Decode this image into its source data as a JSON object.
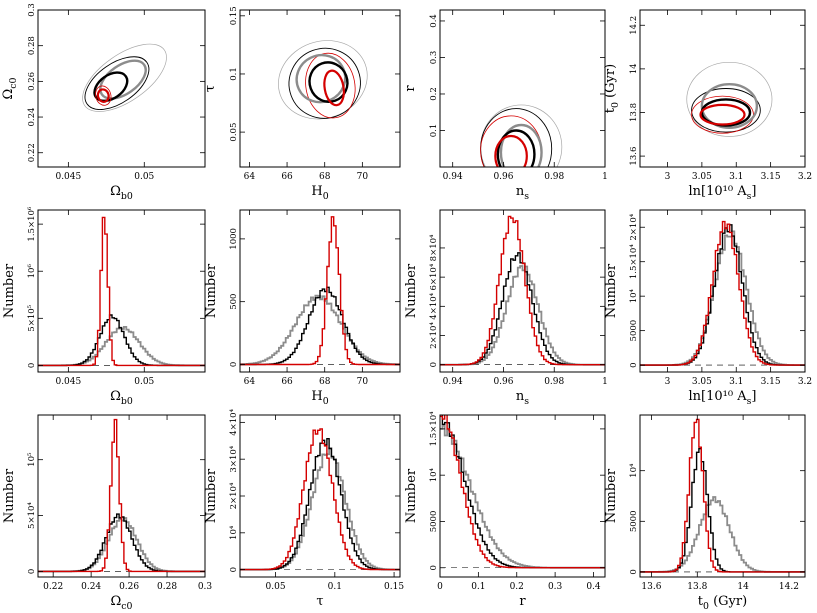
{
  "figure": {
    "colors": {
      "black": "#000000",
      "gray": "#8c8c8c",
      "lightgray": "#a8a8a8",
      "red": "#d40000"
    }
  },
  "chart_data": [
    {
      "id": "c-ob-oc",
      "type": "contour",
      "xlabel": "Ωb0",
      "ylabel": "Ωc0",
      "xlim": [
        0.043,
        0.054
      ],
      "ylim": [
        0.212,
        0.3
      ],
      "xticks": [
        [
          0.045,
          "0.045"
        ],
        [
          0.05,
          "0.05"
        ]
      ],
      "yticks": [
        [
          0.22,
          "0.22"
        ],
        [
          0.24,
          "0.24"
        ],
        [
          0.26,
          "0.26"
        ],
        [
          0.28,
          "0.28"
        ],
        [
          0.3,
          "0.3"
        ]
      ],
      "ellipses": [
        {
          "color": "lightgray",
          "cx": 0.0487,
          "cy": 0.262,
          "rx": 0.0032,
          "ry": 0.013,
          "rot": -35,
          "w": 0.7
        },
        {
          "color": "black",
          "cx": 0.0482,
          "cy": 0.259,
          "rx": 0.0024,
          "ry": 0.011,
          "rot": -35,
          "w": 0.9
        },
        {
          "color": "gray",
          "cx": 0.0486,
          "cy": 0.261,
          "rx": 0.0017,
          "ry": 0.008,
          "rot": -35,
          "w": 2.4
        },
        {
          "color": "black",
          "cx": 0.0478,
          "cy": 0.257,
          "rx": 0.0012,
          "ry": 0.0065,
          "rot": -35,
          "w": 2.4
        },
        {
          "color": "red",
          "cx": 0.0473,
          "cy": 0.252,
          "rx": 0.0005,
          "ry": 0.0055,
          "rot": -15,
          "w": 0.8
        },
        {
          "color": "red",
          "cx": 0.0473,
          "cy": 0.252,
          "rx": 0.00035,
          "ry": 0.0035,
          "rot": -15,
          "w": 2.2
        }
      ]
    },
    {
      "id": "c-h0-tau",
      "type": "contour",
      "xlabel": "H0",
      "ylabel": "τ",
      "xlim": [
        63.5,
        72
      ],
      "ylim": [
        0.02,
        0.155
      ],
      "xticks": [
        [
          64,
          "64"
        ],
        [
          66,
          "66"
        ],
        [
          68,
          "68"
        ],
        [
          70,
          "70"
        ]
      ],
      "yticks": [
        [
          0.05,
          "0.05"
        ],
        [
          0.1,
          "0.1"
        ],
        [
          0.15,
          "0.15"
        ]
      ],
      "ellipses": [
        {
          "color": "lightgray",
          "cx": 67.9,
          "cy": 0.095,
          "rx": 2.4,
          "ry": 0.033,
          "rot": -20,
          "w": 0.7
        },
        {
          "color": "black",
          "cx": 68.0,
          "cy": 0.092,
          "rx": 1.9,
          "ry": 0.03,
          "rot": -20,
          "w": 0.9
        },
        {
          "color": "red",
          "cx": 68.3,
          "cy": 0.09,
          "rx": 1.3,
          "ry": 0.028,
          "rot": -10,
          "w": 0.8
        },
        {
          "color": "gray",
          "cx": 67.8,
          "cy": 0.096,
          "rx": 1.3,
          "ry": 0.02,
          "rot": -25,
          "w": 2.4
        },
        {
          "color": "black",
          "cx": 68.2,
          "cy": 0.093,
          "rx": 1.0,
          "ry": 0.017,
          "rot": -20,
          "w": 2.4
        },
        {
          "color": "red",
          "cx": 68.5,
          "cy": 0.088,
          "rx": 0.5,
          "ry": 0.015,
          "rot": -10,
          "w": 2.2
        }
      ]
    },
    {
      "id": "c-ns-r",
      "type": "contour",
      "xlabel": "ns",
      "ylabel": "r",
      "xlim": [
        0.935,
        1.0
      ],
      "ylim": [
        0.0,
        0.43
      ],
      "xticks": [
        [
          0.94,
          "0.94"
        ],
        [
          0.96,
          "0.96"
        ],
        [
          0.98,
          "0.98"
        ],
        [
          1.0,
          "1"
        ]
      ],
      "yticks": [
        [
          0.1,
          "0.1"
        ],
        [
          0.2,
          "0.2"
        ],
        [
          0.3,
          "0.3"
        ],
        [
          0.4,
          "0.4"
        ]
      ],
      "ellipses": [
        {
          "color": "lightgray",
          "cx": 0.967,
          "cy": 0.055,
          "rx": 0.016,
          "ry": 0.115,
          "rot": 0,
          "w": 0.7
        },
        {
          "color": "black",
          "cx": 0.965,
          "cy": 0.05,
          "rx": 0.014,
          "ry": 0.11,
          "rot": 0,
          "w": 0.9
        },
        {
          "color": "red",
          "cx": 0.963,
          "cy": 0.045,
          "rx": 0.012,
          "ry": 0.095,
          "rot": 0,
          "w": 0.8
        },
        {
          "color": "gray",
          "cx": 0.967,
          "cy": 0.04,
          "rx": 0.008,
          "ry": 0.075,
          "rot": 0,
          "w": 2.4
        },
        {
          "color": "black",
          "cx": 0.965,
          "cy": 0.035,
          "rx": 0.0072,
          "ry": 0.065,
          "rot": 0,
          "w": 2.4
        },
        {
          "color": "red",
          "cx": 0.963,
          "cy": 0.03,
          "rx": 0.0062,
          "ry": 0.055,
          "rot": 0,
          "w": 2.2
        }
      ]
    },
    {
      "id": "c-as-t0",
      "type": "contour",
      "xlabel": "ln[10¹⁰ As]",
      "ylabel": "t0 (Gyr)",
      "xlim": [
        2.96,
        3.2
      ],
      "ylim": [
        13.55,
        14.27
      ],
      "xticks": [
        [
          3.0,
          "3"
        ],
        [
          3.05,
          "3.05"
        ],
        [
          3.1,
          "3.1"
        ],
        [
          3.15,
          "3.15"
        ],
        [
          3.2,
          "3.2"
        ]
      ],
      "yticks": [
        [
          13.6,
          "13.6"
        ],
        [
          13.8,
          "13.8"
        ],
        [
          14.0,
          "14"
        ],
        [
          14.2,
          "14.2"
        ]
      ],
      "ellipses": [
        {
          "color": "lightgray",
          "cx": 3.09,
          "cy": 13.86,
          "rx": 0.062,
          "ry": 0.17,
          "rot": 0,
          "w": 0.7
        },
        {
          "color": "black",
          "cx": 3.085,
          "cy": 13.81,
          "rx": 0.05,
          "ry": 0.1,
          "rot": 0,
          "w": 0.9
        },
        {
          "color": "red",
          "cx": 3.08,
          "cy": 13.79,
          "rx": 0.045,
          "ry": 0.085,
          "rot": 0,
          "w": 0.8
        },
        {
          "color": "gray",
          "cx": 3.09,
          "cy": 13.83,
          "rx": 0.04,
          "ry": 0.1,
          "rot": 0,
          "w": 2.4
        },
        {
          "color": "black",
          "cx": 3.085,
          "cy": 13.8,
          "rx": 0.035,
          "ry": 0.06,
          "rot": 0,
          "w": 2.4
        },
        {
          "color": "red",
          "cx": 3.08,
          "cy": 13.79,
          "rx": 0.032,
          "ry": 0.045,
          "rot": 0,
          "w": 2.2
        }
      ]
    },
    {
      "id": "h-ob",
      "type": "line",
      "xlabel": "Ωb0",
      "ylabel": "Number",
      "xlim": [
        0.043,
        0.054
      ],
      "ylim": [
        -70000.0,
        1650000.0
      ],
      "xticks": [
        [
          0.045,
          "0.045"
        ],
        [
          0.05,
          "0.05"
        ]
      ],
      "yticks": [
        [
          0,
          "0"
        ],
        [
          500000.0,
          "5×10⁵"
        ],
        [
          1000000.0,
          "10⁶"
        ],
        [
          1500000.0,
          "1.5×10⁶"
        ]
      ],
      "series": [
        {
          "color": "gray",
          "mean": 0.0485,
          "sd": 0.0011,
          "peak": 400000.0,
          "w": 1.8
        },
        {
          "color": "black",
          "mean": 0.0478,
          "sd": 0.0008,
          "peak": 520000.0,
          "w": 1.4
        },
        {
          "color": "red",
          "mean": 0.0473,
          "sd": 0.00022,
          "peak": 1600000.0,
          "w": 1.4
        }
      ]
    },
    {
      "id": "h-h0",
      "type": "line",
      "xlabel": "H0",
      "ylabel": "Number",
      "xlim": [
        63.5,
        72
      ],
      "ylim": [
        -60,
        1230
      ],
      "xticks": [
        [
          64,
          "64"
        ],
        [
          66,
          "66"
        ],
        [
          68,
          "68"
        ],
        [
          70,
          "70"
        ]
      ],
      "yticks": [
        [
          0,
          "0"
        ],
        [
          500,
          "500"
        ],
        [
          1000,
          "1000"
        ]
      ],
      "series": [
        {
          "color": "gray",
          "mean": 67.6,
          "sd": 1.2,
          "peak": 540,
          "w": 1.8
        },
        {
          "color": "black",
          "mean": 68.0,
          "sd": 0.9,
          "peak": 600,
          "w": 1.4
        },
        {
          "color": "red",
          "mean": 68.4,
          "sd": 0.32,
          "peak": 1150,
          "w": 1.4
        }
      ]
    },
    {
      "id": "h-ns",
      "type": "line",
      "xlabel": "ns",
      "ylabel": "Number",
      "xlim": [
        0.935,
        1.0
      ],
      "ylim": [
        -5000.0,
        106000.0
      ],
      "xticks": [
        [
          0.94,
          "0.94"
        ],
        [
          0.96,
          "0.96"
        ],
        [
          0.98,
          "0.98"
        ],
        [
          1.0,
          "1"
        ]
      ],
      "yticks": [
        [
          0,
          "0"
        ],
        [
          20000.0,
          "2×10⁴"
        ],
        [
          40000.0,
          "4×10⁴"
        ],
        [
          60000.0,
          "6×10⁴"
        ],
        [
          80000.0,
          "8×10⁴"
        ]
      ],
      "series": [
        {
          "color": "gray",
          "mean": 0.967,
          "sd": 0.0062,
          "peak": 67000.0,
          "w": 1.8
        },
        {
          "color": "black",
          "mean": 0.965,
          "sd": 0.0058,
          "peak": 75000.0,
          "w": 1.4
        },
        {
          "color": "red",
          "mean": 0.963,
          "sd": 0.005,
          "peak": 101000.0,
          "w": 1.4
        }
      ]
    },
    {
      "id": "h-as",
      "type": "line",
      "xlabel": "ln[10¹⁰ As]",
      "ylabel": "Number",
      "xlim": [
        2.96,
        3.2
      ],
      "ylim": [
        -1000.0,
        22500.0
      ],
      "xticks": [
        [
          3.0,
          "3"
        ],
        [
          3.05,
          "3.05"
        ],
        [
          3.1,
          "3.1"
        ],
        [
          3.15,
          "3.15"
        ],
        [
          3.2,
          "3.2"
        ]
      ],
      "yticks": [
        [
          0,
          "0"
        ],
        [
          5000,
          "5000"
        ],
        [
          10000,
          "10⁴"
        ],
        [
          15000,
          "1.5×10⁴"
        ],
        [
          20000,
          "2×10⁴"
        ]
      ],
      "series": [
        {
          "color": "gray",
          "mean": 3.09,
          "sd": 0.023,
          "peak": 19000.0,
          "w": 1.8
        },
        {
          "color": "black",
          "mean": 3.087,
          "sd": 0.02,
          "peak": 20000.0,
          "w": 1.4
        },
        {
          "color": "red",
          "mean": 3.083,
          "sd": 0.019,
          "peak": 20500.0,
          "w": 1.4
        }
      ]
    },
    {
      "id": "h-oc",
      "type": "line",
      "xlabel": "Ωc0",
      "ylabel": "Number",
      "xlim": [
        0.212,
        0.3
      ],
      "ylim": [
        -5000.0,
        140000.0
      ],
      "xticks": [
        [
          0.22,
          "0.22"
        ],
        [
          0.24,
          "0.24"
        ],
        [
          0.26,
          "0.26"
        ],
        [
          0.28,
          "0.28"
        ],
        [
          0.3,
          "0.3"
        ]
      ],
      "yticks": [
        [
          0,
          "0"
        ],
        [
          50000.0,
          "5×10⁴"
        ],
        [
          100000.0,
          "10⁵"
        ]
      ],
      "series": [
        {
          "color": "gray",
          "mean": 0.256,
          "sd": 0.0075,
          "peak": 47000.0,
          "w": 1.8
        },
        {
          "color": "black",
          "mean": 0.254,
          "sd": 0.0068,
          "peak": 50000.0,
          "w": 1.4
        },
        {
          "color": "red",
          "mean": 0.252,
          "sd": 0.0022,
          "peak": 132000.0,
          "w": 1.4
        }
      ]
    },
    {
      "id": "h-tau",
      "type": "line",
      "xlabel": "τ",
      "ylabel": "Number",
      "xlim": [
        0.02,
        0.155
      ],
      "ylim": [
        -2000.0,
        42000.0
      ],
      "xticks": [
        [
          0.05,
          "0.05"
        ],
        [
          0.1,
          "0.1"
        ],
        [
          0.15,
          "0.15"
        ]
      ],
      "yticks": [
        [
          0,
          "0"
        ],
        [
          10000.0,
          "10⁴"
        ],
        [
          20000.0,
          "2×10⁴"
        ],
        [
          30000.0,
          "3×10⁴"
        ],
        [
          40000.0,
          "4×10⁴"
        ]
      ],
      "series": [
        {
          "color": "gray",
          "mean": 0.094,
          "sd": 0.014,
          "peak": 32000.0,
          "w": 1.8
        },
        {
          "color": "black",
          "mean": 0.091,
          "sd": 0.013,
          "peak": 35000.0,
          "w": 1.4
        },
        {
          "color": "red",
          "mean": 0.085,
          "sd": 0.012,
          "peak": 38000.0,
          "w": 1.4
        }
      ]
    },
    {
      "id": "h-r",
      "type": "line",
      "xlabel": "r",
      "ylabel": "Number",
      "xlim": [
        0.0,
        0.43
      ],
      "ylim": [
        -1000.0,
        16500.0
      ],
      "xticks": [
        [
          0,
          "0"
        ],
        [
          0.1,
          "0.1"
        ],
        [
          0.2,
          "0.2"
        ],
        [
          0.3,
          "0.3"
        ],
        [
          0.4,
          "0.4"
        ]
      ],
      "yticks": [
        [
          0,
          "0"
        ],
        [
          5000,
          "5000"
        ],
        [
          10000,
          "10⁴"
        ],
        [
          15000,
          "1.5×10⁴"
        ]
      ],
      "series": [
        {
          "color": "gray",
          "mean": 0.0,
          "sd": 0.075,
          "peak": 15000.0,
          "w": 1.8
        },
        {
          "color": "black",
          "mean": 0.0,
          "sd": 0.06,
          "peak": 16000.0,
          "w": 1.4
        },
        {
          "color": "red",
          "mean": 0.0,
          "sd": 0.05,
          "peak": 16500.0,
          "w": 1.4
        }
      ]
    },
    {
      "id": "h-t0",
      "type": "line",
      "xlabel": "t0 (Gyr)",
      "ylabel": "Number",
      "xlim": [
        13.55,
        14.27
      ],
      "ylim": [
        -500.0,
        15500.0
      ],
      "xticks": [
        [
          13.6,
          "13.6"
        ],
        [
          13.8,
          "13.8"
        ],
        [
          14.0,
          "14"
        ],
        [
          14.2,
          "14.2"
        ]
      ],
      "yticks": [
        [
          0,
          "0"
        ],
        [
          5000,
          "5000"
        ],
        [
          10000,
          "10⁴"
        ]
      ],
      "series": [
        {
          "color": "gray",
          "mean": 13.87,
          "sd": 0.065,
          "peak": 7200.0,
          "w": 1.8
        },
        {
          "color": "black",
          "mean": 13.805,
          "sd": 0.035,
          "peak": 12000.0,
          "w": 1.4
        },
        {
          "color": "red",
          "mean": 13.79,
          "sd": 0.03,
          "peak": 15000.0,
          "w": 1.4
        }
      ]
    }
  ]
}
